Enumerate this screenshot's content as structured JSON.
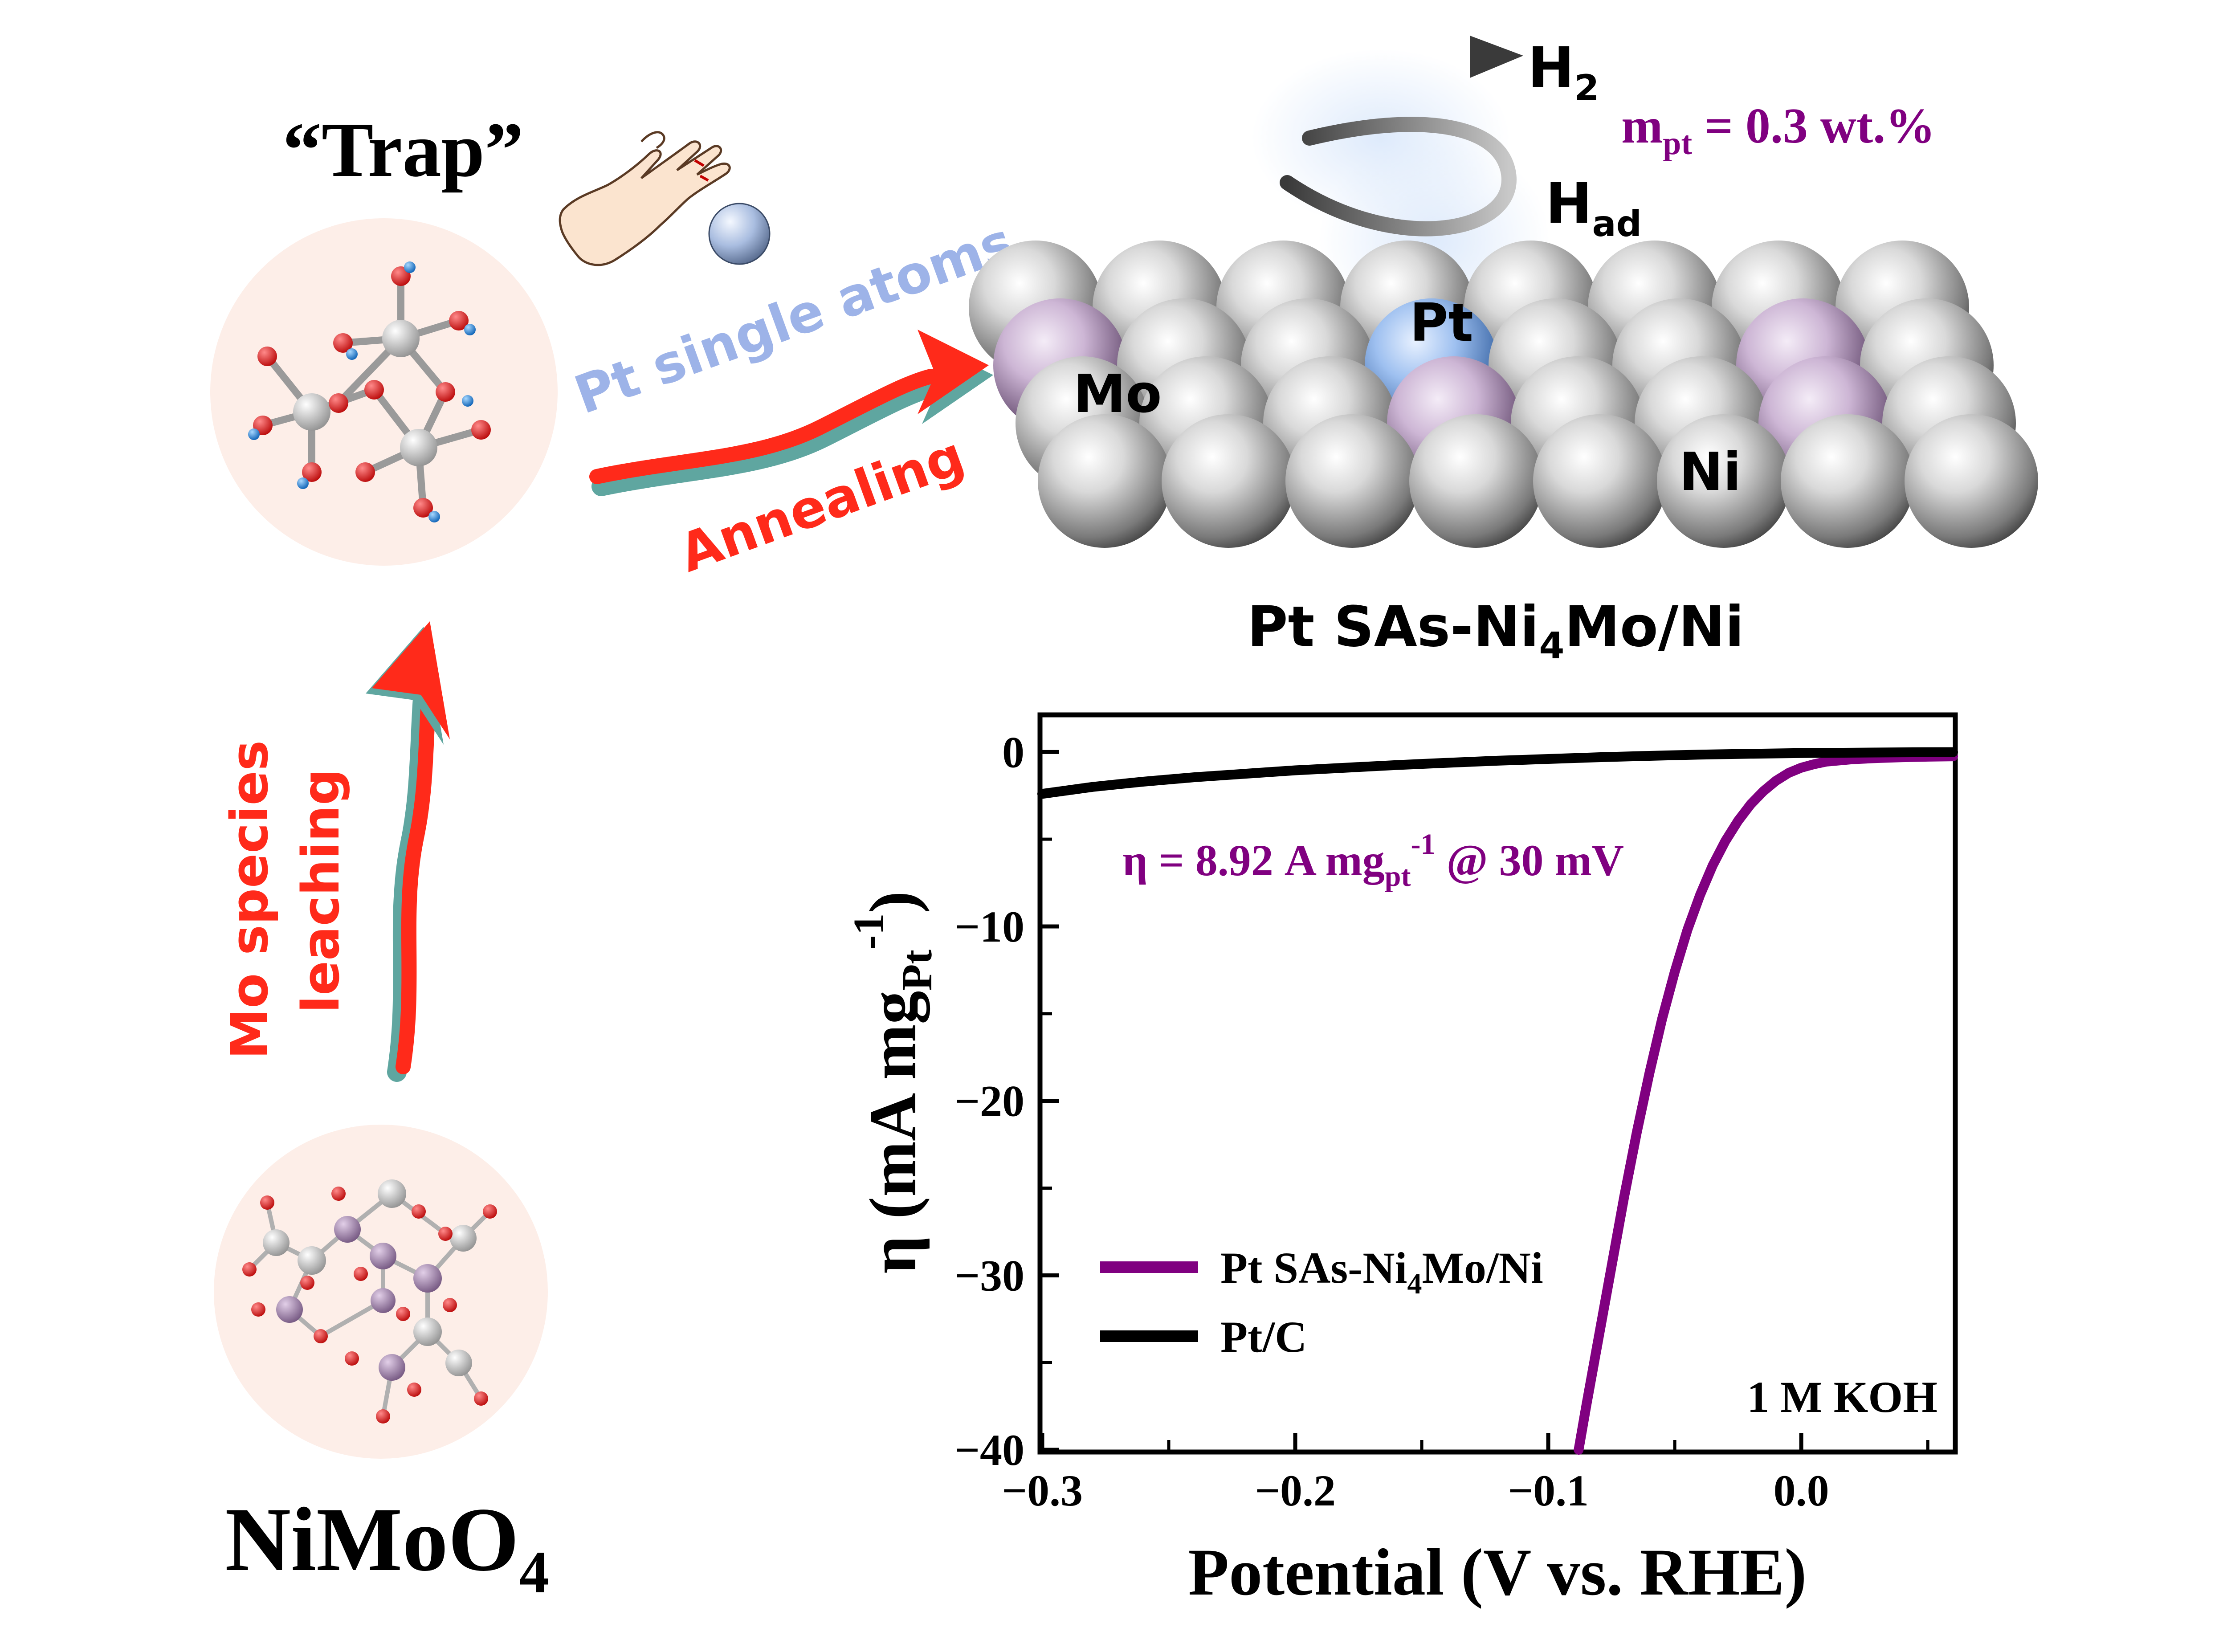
{
  "scheme": {
    "trap_label": "“Trap”",
    "precursor_label": "NiMoO",
    "precursor_sub": "4",
    "pt_single_atoms": "Pt single atoms",
    "annealing": "Annealing",
    "leach_line1": "Mo species",
    "leach_line2": "leaching",
    "product_label": "Pt SAs-Ni",
    "product_sub": "4",
    "product_tail": "Mo/Ni",
    "atom_labels": {
      "mo": "Mo",
      "pt": "Pt",
      "ni": "Ni"
    },
    "h2": "H",
    "h2_sub": "2",
    "had": "H",
    "had_sub": "ad",
    "loading_m": "m",
    "loading_sub": "pt",
    "loading_value": " = 0.3 wt.%"
  },
  "colors": {
    "purple": "#800080",
    "red_arrow": "#ff2a1a",
    "teal_shadow": "#5fa6a0",
    "pt_text": "#9db3e8",
    "circle_bg": "#fdeee8"
  },
  "chart_data": {
    "type": "line",
    "xlabel": "Potential (V vs. RHE)",
    "ylabel_main": "η (mA mg",
    "ylabel_sub": "Pt",
    "ylabel_sup": "-1",
    "ylabel_close": ")",
    "xlim": [
      -0.3,
      0.06
    ],
    "ylim": [
      -40,
      2
    ],
    "xticks": [
      -0.3,
      -0.2,
      -0.1,
      0.0
    ],
    "xtick_labels": [
      "−0.3",
      "−0.2",
      "−0.1",
      "0.0"
    ],
    "yticks": [
      0,
      -10,
      -20,
      -30,
      -40
    ],
    "ytick_labels": [
      "0",
      "−10",
      "−20",
      "−30",
      "−40"
    ],
    "annotation_main": "η = 8.92 A mg",
    "annotation_sub": "pt",
    "annotation_sup": "-1",
    "annotation_tail": " @ 30 mV",
    "electrolyte": "1 M KOH",
    "legend": [
      {
        "name_main": "Pt SAs-Ni",
        "name_sub": "4",
        "name_tail": "Mo/Ni",
        "color": "#800080"
      },
      {
        "name_main": "Pt/C",
        "name_sub": "",
        "name_tail": "",
        "color": "#000000"
      }
    ],
    "series": [
      {
        "name": "Pt SAs-Ni4Mo/Ni",
        "color": "#800080",
        "x": [
          -0.088,
          -0.085,
          -0.08,
          -0.075,
          -0.07,
          -0.065,
          -0.06,
          -0.055,
          -0.05,
          -0.045,
          -0.04,
          -0.035,
          -0.03,
          -0.025,
          -0.02,
          -0.015,
          -0.01,
          -0.005,
          0.0,
          0.005,
          0.01,
          0.02,
          0.03,
          0.04,
          0.05,
          0.06
        ],
        "y": [
          -40,
          -37.5,
          -33.5,
          -29.5,
          -25.5,
          -21.8,
          -18.4,
          -15.3,
          -12.6,
          -10.2,
          -8.2,
          -6.5,
          -5.1,
          -3.95,
          -3.0,
          -2.25,
          -1.65,
          -1.2,
          -0.9,
          -0.7,
          -0.55,
          -0.42,
          -0.35,
          -0.3,
          -0.27,
          -0.25
        ]
      },
      {
        "name": "Pt/C",
        "color": "#000000",
        "x": [
          -0.3,
          -0.28,
          -0.26,
          -0.24,
          -0.22,
          -0.2,
          -0.18,
          -0.16,
          -0.14,
          -0.12,
          -0.1,
          -0.08,
          -0.06,
          -0.04,
          -0.02,
          0.0,
          0.02,
          0.04,
          0.06
        ],
        "y": [
          -2.4,
          -2.0,
          -1.7,
          -1.45,
          -1.25,
          -1.05,
          -0.9,
          -0.75,
          -0.62,
          -0.5,
          -0.4,
          -0.3,
          -0.22,
          -0.15,
          -0.1,
          -0.06,
          -0.04,
          -0.02,
          -0.01
        ]
      }
    ]
  }
}
